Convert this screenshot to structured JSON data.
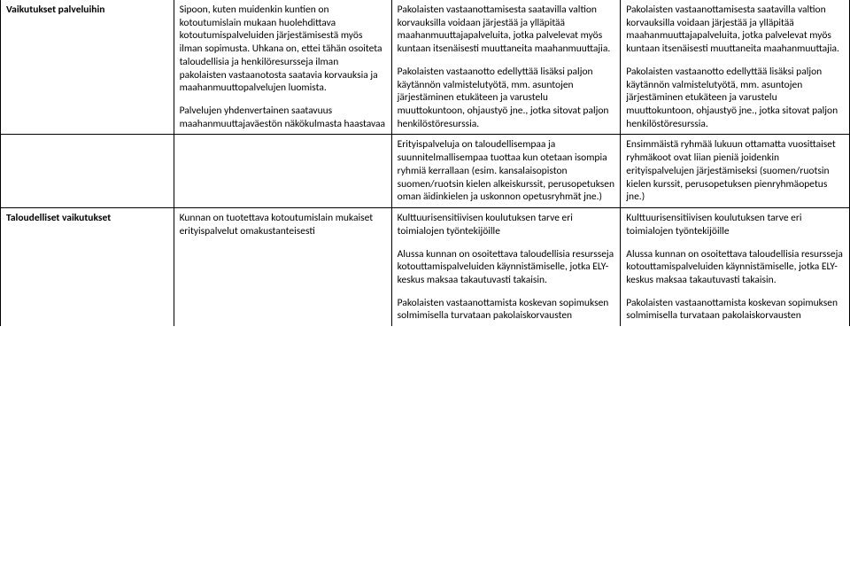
{
  "row1": {
    "label": "Vaikutukset palveluihin",
    "c2p1": "Sipoon, kuten muidenkin kuntien on kotoutumislain mukaan huolehdittava kotoutumispalveluiden järjestämisestä myös ilman sopimusta. Uhkana on, ettei tähän osoiteta taloudellisia ja henkilöresursseja ilman pakolaisten vastaanotosta saatavia korvauksia ja maahanmuuttopalvelujen luomista.",
    "c2p2": "Palvelujen yhdenvertainen saatavuus maahanmuuttajaväestön näkökulmasta haastavaa",
    "c3p1": "Pakolaisten vastaanottamisesta saatavilla valtion korvauksilla voidaan järjestää ja ylläpitää maahanmuuttajapalveluita, jotka palvelevat myös kuntaan itsenäisesti muuttaneita maahanmuuttajia.",
    "c3p2": "Pakolaisten vastaanotto edellyttää lisäksi paljon käytännön valmistelutyötä, mm. asuntojen järjestäminen etukäteen ja varustelu muuttokuntoon, ohjaustyö jne., jotka sitovat paljon henkilöstöresurssia.",
    "c4p1": "Pakolaisten vastaanottamisesta saatavilla valtion korvauksilla voidaan järjestää ja ylläpitää maahanmuuttajapalveluita, jotka palvelevat myös kuntaan itsenäisesti muuttaneita maahanmuuttajia.",
    "c4p2": "Pakolaisten vastaanotto edellyttää lisäksi paljon käytännön valmistelutyötä, mm. asuntojen järjestäminen etukäteen ja varustelu muuttokuntoon, ohjaustyö jne., jotka sitovat paljon henkilöstöresurssia."
  },
  "row2": {
    "c3p1": "Erityispalveluja on taloudellisempaa ja suunnitelmallisempaa tuottaa kun otetaan isompia ryhmiä kerrallaan (esim. kansalaisopiston suomen/ruotsin kielen alkeiskurssit, perusopetuksen oman äidinkielen ja uskonnon opetusryhmät jne.)",
    "c4p1": "Ensimmäistä ryhmää lukuun ottamatta vuosittaiset ryhmäkoot ovat liian pieniä joidenkin erityispalvelujen järjestämiseksi (suomen/ruotsin kielen kurssit, perusopetuksen pienryhmäopetus jne.)"
  },
  "row3": {
    "label": "Taloudelliset vaikutukset",
    "c2p1": "Kunnan on tuotettava kotoutumislain mukaiset erityispalvelut omakustanteisesti",
    "c3p1": "Kulttuurisensitiivisen koulutuksen tarve eri toimialojen työntekijöille",
    "c3p2": "Alussa kunnan on osoitettava taloudellisia resursseja kotouttamispalveluiden käynnistämiselle, jotka ELY-keskus maksaa takautuvasti takaisin.",
    "c3p3": "Pakolaisten vastaanottamista koskevan sopimuksen solmimisella turvataan pakolaiskorvausten",
    "c4p1": "Kulttuurisensitiivisen koulutuksen tarve eri toimialojen työntekijöille",
    "c4p2": "Alussa kunnan on osoitettava taloudellisia resursseja kotouttamispalveluiden käynnistämiselle, jotka ELY-keskus maksaa takautuvasti takaisin.",
    "c4p3": "Pakolaisten vastaanottamista koskevan sopimuksen solmimisella turvataan pakolaiskorvausten"
  }
}
